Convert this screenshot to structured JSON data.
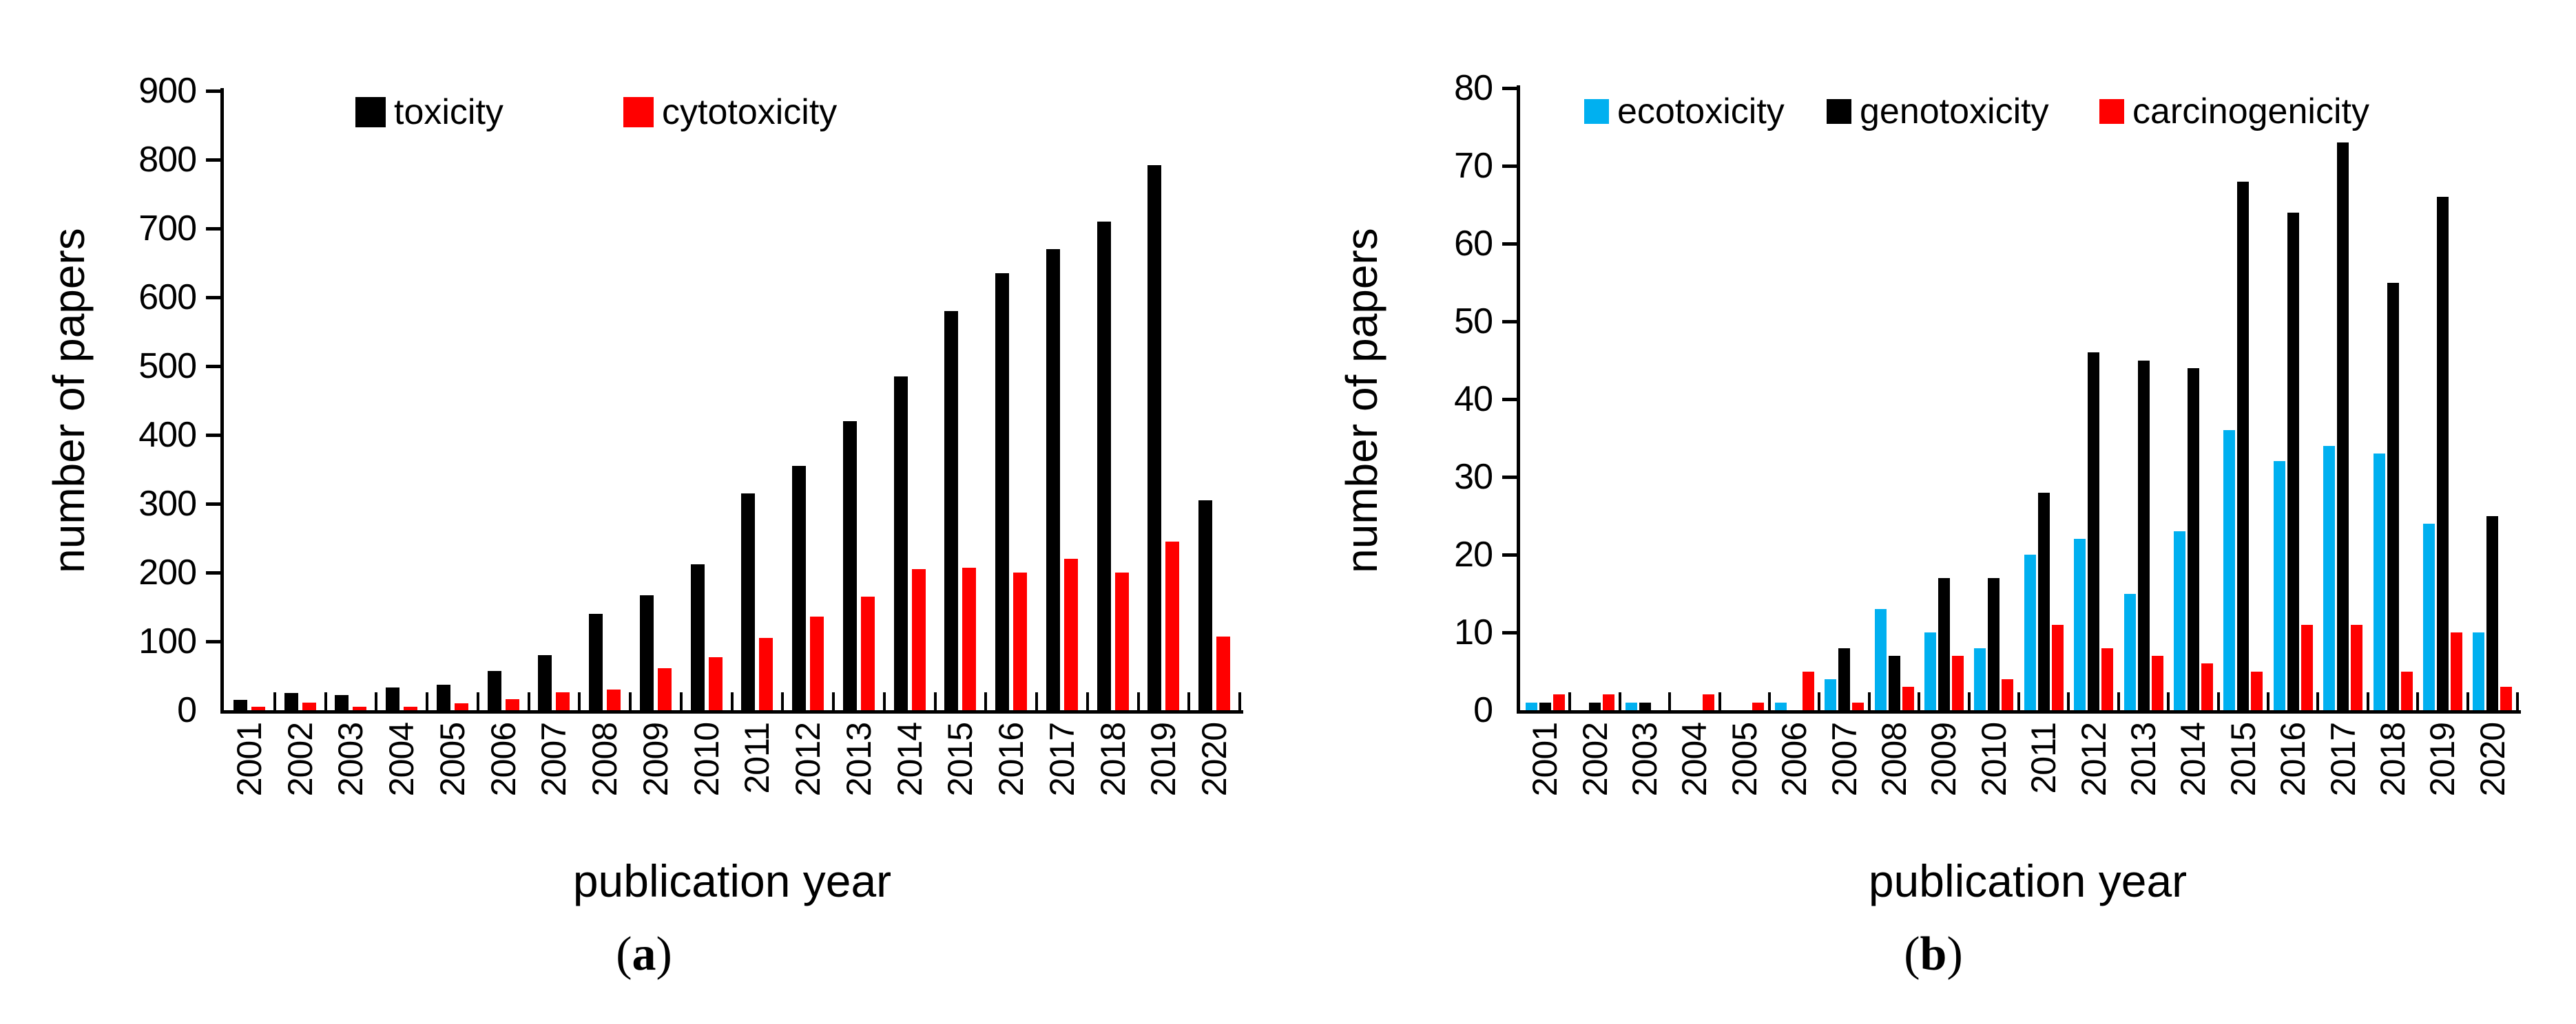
{
  "chart_data": [
    {
      "type": "bar",
      "panel_tag": "(a)",
      "xlabel": "publication year",
      "ylabel": "number of papers",
      "categories": [
        "2001",
        "2002",
        "2003",
        "2004",
        "2005",
        "2006",
        "2007",
        "2008",
        "2009",
        "2010",
        "2011",
        "2012",
        "2013",
        "2014",
        "2015",
        "2016",
        "2017",
        "2018",
        "2019",
        "2020"
      ],
      "ylim": [
        0,
        900
      ],
      "ytick_step": 100,
      "grid": false,
      "legend_position": "top-inside",
      "series": [
        {
          "name": "toxicity",
          "color": "#000000",
          "values": [
            15,
            25,
            22,
            33,
            37,
            57,
            80,
            140,
            167,
            212,
            315,
            355,
            420,
            485,
            580,
            635,
            670,
            710,
            792,
            305
          ]
        },
        {
          "name": "cytotoxicity",
          "color": "#FF0000",
          "values": [
            5,
            11,
            5,
            5,
            10,
            16,
            26,
            30,
            61,
            77,
            105,
            136,
            165,
            205,
            207,
            200,
            220,
            200,
            245,
            107
          ]
        }
      ]
    },
    {
      "type": "bar",
      "panel_tag": "(b)",
      "xlabel": "publication year",
      "ylabel": "number of papers",
      "categories": [
        "2001",
        "2002",
        "2003",
        "2004",
        "2005",
        "2006",
        "2007",
        "2008",
        "2009",
        "2010",
        "2011",
        "2012",
        "2013",
        "2014",
        "2015",
        "2016",
        "2017",
        "2018",
        "2019",
        "2020"
      ],
      "ylim": [
        0,
        80
      ],
      "ytick_step": 10,
      "grid": false,
      "legend_position": "top-inside",
      "series": [
        {
          "name": "ecotoxicity",
          "color": "#00B0F0",
          "values": [
            1,
            0,
            1,
            0,
            0,
            1,
            4,
            13,
            10,
            8,
            20,
            22,
            15,
            23,
            36,
            32,
            34,
            33,
            24,
            10
          ]
        },
        {
          "name": "genotoxicity",
          "color": "#000000",
          "values": [
            1,
            1,
            1,
            0,
            0,
            0,
            8,
            7,
            17,
            17,
            28,
            46,
            45,
            44,
            68,
            64,
            73,
            55,
            66,
            25
          ]
        },
        {
          "name": "carcinogenicity",
          "color": "#FF0000",
          "values": [
            2,
            2,
            0,
            2,
            1,
            5,
            1,
            3,
            7,
            4,
            11,
            8,
            7,
            6,
            5,
            11,
            11,
            5,
            10,
            3
          ]
        }
      ]
    }
  ]
}
